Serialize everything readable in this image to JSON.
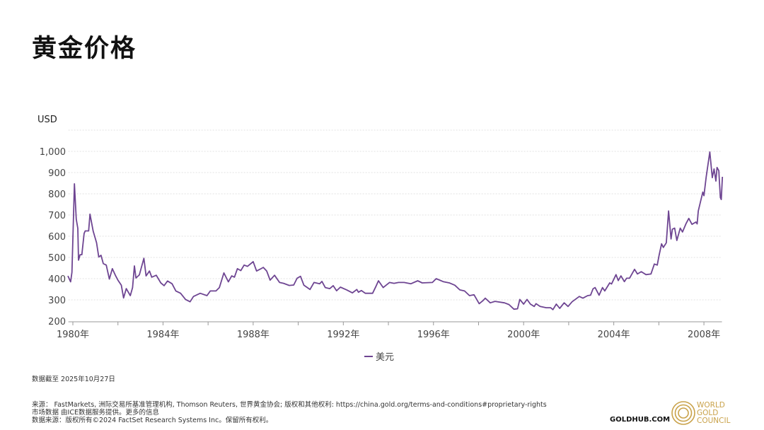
{
  "title": "黄金价格",
  "chart_data": {
    "type": "line",
    "title": "",
    "ylabel": "USD",
    "xlabel": "",
    "ylim": [
      200,
      1100
    ],
    "xlim": [
      1979.8,
      2008.8
    ],
    "yticks": [
      200,
      300,
      400,
      500,
      600,
      700,
      800,
      900,
      1000
    ],
    "ytick_labels": [
      "200",
      "300",
      "400",
      "500",
      "600",
      "700",
      "800",
      "900",
      "1,000"
    ],
    "xticks": [
      1980,
      1984,
      1988,
      1992,
      1996,
      2000,
      2004,
      2008
    ],
    "xtick_labels": [
      "1980年",
      "1984年",
      "1988年",
      "1992年",
      "1996年",
      "2000年",
      "2004年",
      "2008年"
    ],
    "grid": true,
    "legend_position": "bottom",
    "series": [
      {
        "name": "美元",
        "color": "#6e4592",
        "x": [
          1979.78,
          1979.9,
          1979.96,
          1980.07,
          1980.15,
          1980.22,
          1980.25,
          1980.32,
          1980.4,
          1980.5,
          1980.55,
          1980.7,
          1980.76,
          1980.9,
          1981.05,
          1981.15,
          1981.25,
          1981.35,
          1981.48,
          1981.62,
          1981.75,
          1981.9,
          1982.0,
          1982.15,
          1982.25,
          1982.37,
          1982.55,
          1982.65,
          1982.73,
          1982.8,
          1982.95,
          1983.15,
          1983.25,
          1983.4,
          1983.5,
          1983.7,
          1983.9,
          1984.05,
          1984.2,
          1984.4,
          1984.57,
          1984.78,
          1985.0,
          1985.2,
          1985.35,
          1985.65,
          1985.95,
          1986.1,
          1986.35,
          1986.5,
          1986.7,
          1986.9,
          1987.05,
          1987.17,
          1987.3,
          1987.45,
          1987.6,
          1987.75,
          1988.0,
          1988.15,
          1988.35,
          1988.45,
          1988.6,
          1988.75,
          1988.95,
          1989.17,
          1989.35,
          1989.6,
          1989.8,
          1989.95,
          1990.1,
          1990.25,
          1990.52,
          1990.7,
          1990.95,
          1991.05,
          1991.2,
          1991.4,
          1991.55,
          1991.7,
          1991.87,
          1992.15,
          1992.4,
          1992.6,
          1992.67,
          1992.8,
          1992.98,
          1993.3,
          1993.45,
          1993.56,
          1993.77,
          1994.05,
          1994.25,
          1994.45,
          1994.7,
          1995.0,
          1995.3,
          1995.5,
          1995.95,
          1996.12,
          1996.43,
          1996.7,
          1996.95,
          1997.17,
          1997.38,
          1997.6,
          1997.8,
          1998.03,
          1998.2,
          1998.3,
          1998.52,
          1998.73,
          1999.15,
          1999.35,
          1999.57,
          1999.73,
          1999.83,
          2000.0,
          2000.15,
          2000.3,
          2000.47,
          2000.55,
          2000.73,
          2001.0,
          2001.2,
          2001.3,
          2001.45,
          2001.6,
          2001.8,
          2001.97,
          2002.15,
          2002.47,
          2002.63,
          2002.84,
          2002.97,
          2003.08,
          2003.17,
          2003.35,
          2003.5,
          2003.6,
          2003.82,
          2003.9,
          2004.1,
          2004.2,
          2004.32,
          2004.47,
          2004.57,
          2004.7,
          2004.92,
          2005.05,
          2005.22,
          2005.43,
          2005.65,
          2005.8,
          2005.93,
          2006.01,
          2006.12,
          2006.2,
          2006.33,
          2006.43,
          2006.54,
          2006.6,
          2006.7,
          2006.8,
          2006.95,
          2007.05,
          2007.2,
          2007.33,
          2007.47,
          2007.65,
          2007.7,
          2007.75,
          2007.95,
          2008.0,
          2008.1,
          2008.26,
          2008.37,
          2008.45,
          2008.53,
          2008.58,
          2008.66,
          2008.73,
          2008.77,
          2008.82
        ],
        "values": [
          413,
          385,
          430,
          847,
          680,
          637,
          487,
          513,
          513,
          613,
          625,
          625,
          704,
          624,
          569,
          502,
          510,
          471,
          464,
          398,
          447,
          413,
          393,
          369,
          309,
          353,
          320,
          358,
          460,
          403,
          418,
          496,
          413,
          436,
          407,
          416,
          380,
          367,
          389,
          376,
          342,
          331,
          302,
          291,
          316,
          331,
          320,
          342,
          342,
          358,
          427,
          385,
          413,
          407,
          447,
          438,
          464,
          458,
          480,
          436,
          447,
          453,
          436,
          393,
          416,
          382,
          378,
          368,
          370,
          402,
          411,
          369,
          349,
          382,
          376,
          387,
          358,
          353,
          367,
          343,
          360,
          347,
          333,
          349,
          336,
          344,
          331,
          331,
          364,
          390,
          358,
          382,
          378,
          382,
          382,
          376,
          390,
          380,
          382,
          400,
          386,
          380,
          369,
          347,
          342,
          320,
          324,
          282,
          297,
          308,
          286,
          293,
          286,
          278,
          256,
          258,
          302,
          280,
          302,
          280,
          269,
          282,
          269,
          263,
          263,
          254,
          280,
          260,
          286,
          269,
          291,
          316,
          308,
          320,
          322,
          352,
          358,
          322,
          358,
          342,
          380,
          375,
          419,
          391,
          413,
          386,
          402,
          402,
          444,
          422,
          433,
          419,
          422,
          469,
          464,
          510,
          564,
          547,
          569,
          719,
          587,
          633,
          638,
          580,
          638,
          620,
          658,
          684,
          656,
          667,
          658,
          719,
          808,
          791,
          880,
          997,
          876,
          917,
          860,
          924,
          909,
          782,
          773,
          880
        ]
      }
    ]
  },
  "footer": {
    "date_note": "数据截至 2025年10月27日",
    "source_line1": "来源： FastMarkets, 洲际交易所基准管理机构, Thomson Reuters, 世界黄金协会; 版权和其他权利: https://china.gold.org/terms-and-conditions#proprietary-rights",
    "source_line2": "市场数据 由ICE数据服务提供。更多的信息",
    "source_line3": "数据来源：版权所有©2024 FactSet Research Systems Inc。保留所有权利。",
    "goldhub": "GOLDHUB.COM",
    "logo_text": [
      "WORLD",
      "GOLD",
      "COUNCIL"
    ],
    "brand_color": "#c9a24a"
  }
}
